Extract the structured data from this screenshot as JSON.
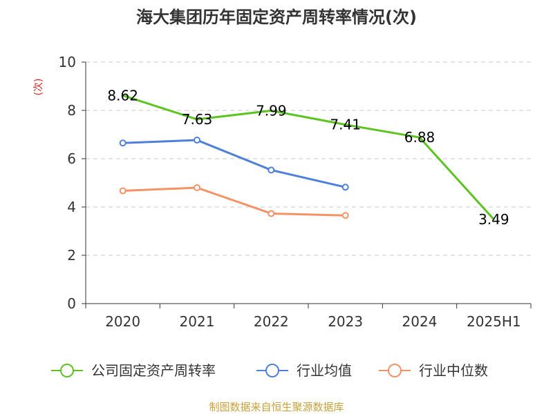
{
  "chart_data": {
    "type": "line",
    "title": "海大集团历年固定资产周转率情况(次)",
    "ylabel": "(次)",
    "xlabel": "",
    "categories": [
      "2020",
      "2021",
      "2022",
      "2023",
      "2024",
      "2025H1"
    ],
    "ylim": [
      0,
      10
    ],
    "yticks": [
      0,
      2,
      4,
      6,
      8,
      10
    ],
    "grid": true,
    "legend_position": "bottom",
    "series": [
      {
        "name": "公司固定资产周转率",
        "color": "#5cc41f",
        "values": [
          8.62,
          7.63,
          7.99,
          7.41,
          6.88,
          3.49
        ],
        "labels": [
          "8.62",
          "7.63",
          "7.99",
          "7.41",
          "6.88",
          "3.49"
        ]
      },
      {
        "name": "行业均值",
        "color": "#4d7fdc",
        "values": [
          6.65,
          6.77,
          5.53,
          4.82,
          null,
          null
        ]
      },
      {
        "name": "行业中位数",
        "color": "#f59163",
        "values": [
          4.67,
          4.8,
          3.73,
          3.65,
          null,
          null
        ]
      }
    ]
  },
  "source": "制图数据来自恒生聚源数据库"
}
